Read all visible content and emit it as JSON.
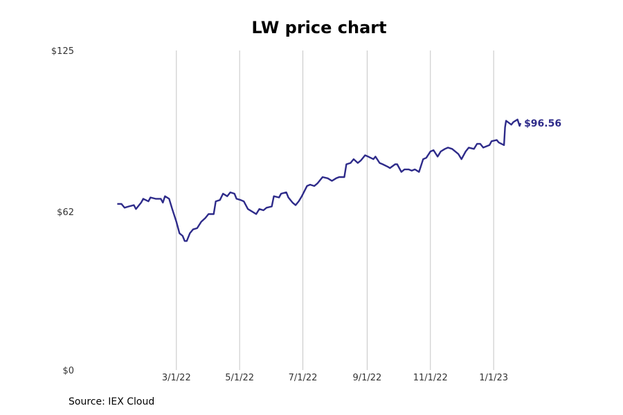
{
  "chart_data": {
    "type": "line",
    "title": "LW price chart",
    "source": "Source: IEX Cloud",
    "xlabel": "",
    "ylabel": "",
    "ylim": [
      0,
      125
    ],
    "y_ticks": [
      {
        "value": 0,
        "label": "$0"
      },
      {
        "value": 62,
        "label": "$62"
      },
      {
        "value": 125,
        "label": "$125"
      }
    ],
    "x_ticks": [
      "3/1/22",
      "5/1/22",
      "7/1/22",
      "9/1/22",
      "11/1/22",
      "1/1/23"
    ],
    "x_range": [
      "2021-12-01",
      "2023-02-28"
    ],
    "grid": "vertical",
    "line_color": "#2e2b8a",
    "end_label": "$96.56",
    "series": [
      {
        "points": [
          [
            "2022-01-03",
            65.0
          ],
          [
            "2022-01-07",
            65.0
          ],
          [
            "2022-01-10",
            63.5
          ],
          [
            "2022-01-14",
            64.0
          ],
          [
            "2022-01-19",
            64.5
          ],
          [
            "2022-01-21",
            63.0
          ],
          [
            "2022-01-26",
            65.5
          ],
          [
            "2022-01-28",
            67.0
          ],
          [
            "2022-02-02",
            66.0
          ],
          [
            "2022-02-04",
            67.5
          ],
          [
            "2022-02-09",
            67.0
          ],
          [
            "2022-02-14",
            67.0
          ],
          [
            "2022-02-16",
            65.5
          ],
          [
            "2022-02-18",
            68.0
          ],
          [
            "2022-02-22",
            67.0
          ],
          [
            "2022-02-25",
            63.0
          ],
          [
            "2022-03-01",
            58.0
          ],
          [
            "2022-03-04",
            53.5
          ],
          [
            "2022-03-07",
            52.5
          ],
          [
            "2022-03-09",
            50.5
          ],
          [
            "2022-03-11",
            50.5
          ],
          [
            "2022-03-14",
            53.5
          ],
          [
            "2022-03-17",
            55.0
          ],
          [
            "2022-03-21",
            55.5
          ],
          [
            "2022-03-25",
            58.0
          ],
          [
            "2022-03-29",
            59.5
          ],
          [
            "2022-04-01",
            61.0
          ],
          [
            "2022-04-06",
            61.0
          ],
          [
            "2022-04-08",
            66.0
          ],
          [
            "2022-04-12",
            66.5
          ],
          [
            "2022-04-15",
            69.0
          ],
          [
            "2022-04-19",
            68.0
          ],
          [
            "2022-04-22",
            69.5
          ],
          [
            "2022-04-26",
            69.0
          ],
          [
            "2022-04-28",
            67.0
          ],
          [
            "2022-05-02",
            66.5
          ],
          [
            "2022-05-05",
            66.0
          ],
          [
            "2022-05-09",
            63.0
          ],
          [
            "2022-05-13",
            62.0
          ],
          [
            "2022-05-17",
            61.0
          ],
          [
            "2022-05-20",
            63.0
          ],
          [
            "2022-05-24",
            62.5
          ],
          [
            "2022-05-27",
            63.5
          ],
          [
            "2022-06-01",
            64.0
          ],
          [
            "2022-06-03",
            68.0
          ],
          [
            "2022-06-08",
            67.5
          ],
          [
            "2022-06-10",
            69.0
          ],
          [
            "2022-06-15",
            69.5
          ],
          [
            "2022-06-17",
            67.5
          ],
          [
            "2022-06-21",
            65.5
          ],
          [
            "2022-06-24",
            64.5
          ],
          [
            "2022-06-27",
            66.0
          ],
          [
            "2022-06-30",
            68.0
          ],
          [
            "2022-07-05",
            72.0
          ],
          [
            "2022-07-08",
            72.5
          ],
          [
            "2022-07-12",
            72.0
          ],
          [
            "2022-07-15",
            73.0
          ],
          [
            "2022-07-20",
            75.5
          ],
          [
            "2022-07-25",
            75.0
          ],
          [
            "2022-07-29",
            74.0
          ],
          [
            "2022-08-02",
            75.0
          ],
          [
            "2022-08-05",
            75.5
          ],
          [
            "2022-08-10",
            75.5
          ],
          [
            "2022-08-12",
            80.5
          ],
          [
            "2022-08-16",
            81.0
          ],
          [
            "2022-08-19",
            82.5
          ],
          [
            "2022-08-23",
            81.0
          ],
          [
            "2022-08-26",
            82.0
          ],
          [
            "2022-08-30",
            84.0
          ],
          [
            "2022-09-02",
            83.5
          ],
          [
            "2022-09-07",
            82.5
          ],
          [
            "2022-09-09",
            83.5
          ],
          [
            "2022-09-13",
            81.0
          ],
          [
            "2022-09-16",
            80.5
          ],
          [
            "2022-09-21",
            79.5
          ],
          [
            "2022-09-23",
            79.0
          ],
          [
            "2022-09-28",
            80.5
          ],
          [
            "2022-09-30",
            80.5
          ],
          [
            "2022-10-04",
            77.5
          ],
          [
            "2022-10-07",
            78.5
          ],
          [
            "2022-10-11",
            78.5
          ],
          [
            "2022-10-14",
            78.0
          ],
          [
            "2022-10-17",
            78.5
          ],
          [
            "2022-10-19",
            78.0
          ],
          [
            "2022-10-21",
            77.5
          ],
          [
            "2022-10-25",
            82.5
          ],
          [
            "2022-10-28",
            83.0
          ],
          [
            "2022-11-01",
            85.5
          ],
          [
            "2022-11-04",
            86.0
          ],
          [
            "2022-11-08",
            83.5
          ],
          [
            "2022-11-11",
            85.5
          ],
          [
            "2022-11-15",
            86.5
          ],
          [
            "2022-11-18",
            87.0
          ],
          [
            "2022-11-22",
            86.5
          ],
          [
            "2022-11-28",
            84.5
          ],
          [
            "2022-12-01",
            82.5
          ],
          [
            "2022-12-05",
            85.5
          ],
          [
            "2022-12-08",
            87.0
          ],
          [
            "2022-12-13",
            86.5
          ],
          [
            "2022-12-16",
            88.5
          ],
          [
            "2022-12-19",
            88.5
          ],
          [
            "2022-12-22",
            87.0
          ],
          [
            "2022-12-28",
            88.0
          ],
          [
            "2022-12-30",
            89.5
          ],
          [
            "2023-01-04",
            90.0
          ],
          [
            "2023-01-06",
            89.0
          ],
          [
            "2023-01-11",
            88.0
          ],
          [
            "2023-01-12",
            95.0
          ],
          [
            "2023-01-13",
            97.5
          ],
          [
            "2023-01-18",
            96.0
          ],
          [
            "2023-01-20",
            97.0
          ],
          [
            "2023-01-24",
            98.0
          ],
          [
            "2023-01-26",
            95.5
          ],
          [
            "2023-01-27",
            96.56
          ]
        ]
      }
    ]
  }
}
